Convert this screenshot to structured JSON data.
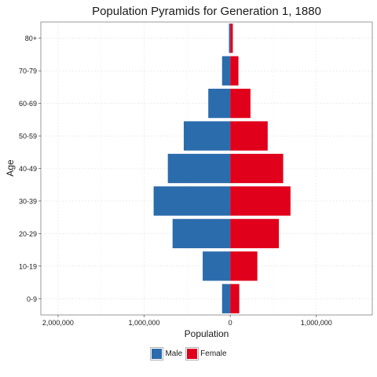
{
  "chart_data": {
    "type": "bar",
    "orientation": "horizontal",
    "layout": "population-pyramid",
    "title": "Population Pyramids for Generation 1, 1880",
    "xlabel": "Population",
    "ylabel": "Age",
    "categories": [
      "0-9",
      "10-19",
      "20-29",
      "30-39",
      "40-49",
      "50-59",
      "60-69",
      "70-79",
      "80+"
    ],
    "series": [
      {
        "name": "Male",
        "color": "#2b6cad",
        "direction": "left",
        "values": [
          95000,
          320000,
          670000,
          890000,
          725000,
          540000,
          255000,
          95000,
          15000
        ]
      },
      {
        "name": "Female",
        "color": "#e0001b",
        "direction": "right",
        "values": [
          105000,
          315000,
          565000,
          700000,
          615000,
          435000,
          235000,
          95000,
          30000
        ]
      }
    ],
    "xlim": [
      -2200000,
      1650000
    ],
    "xticks": [
      -2000000,
      -1000000,
      0,
      1000000
    ],
    "xtick_labels": [
      "2,000,000",
      "1,000,000",
      "0",
      "1,000,000"
    ],
    "grid": true,
    "legend_position": "bottom"
  }
}
